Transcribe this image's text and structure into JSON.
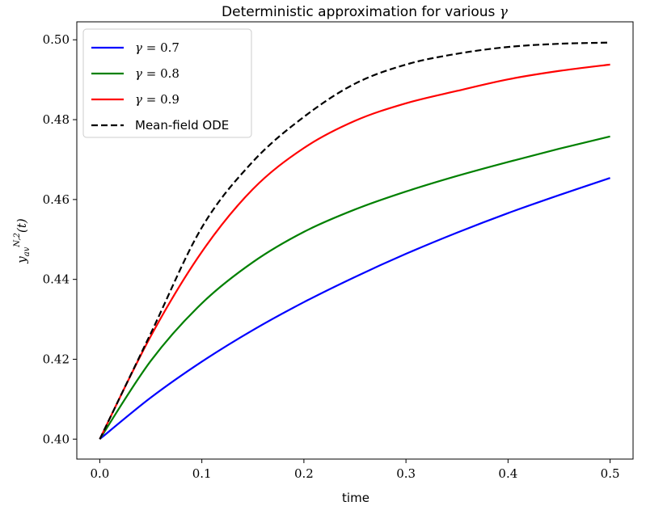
{
  "chart_data": {
    "type": "line",
    "title": "Deterministic approximation for various γ",
    "xlabel": "time",
    "ylabel": "y_av^{N,2}(t)",
    "xlim": [
      -0.0225,
      0.5225
    ],
    "ylim": [
      0.395,
      0.5045
    ],
    "xticks": [
      0.0,
      0.1,
      0.2,
      0.3,
      0.4,
      0.5
    ],
    "xtick_labels": [
      "0.0",
      "0.1",
      "0.2",
      "0.3",
      "0.4",
      "0.5"
    ],
    "yticks": [
      0.4,
      0.42,
      0.44,
      0.46,
      0.48,
      0.5
    ],
    "ytick_labels": [
      "0.40",
      "0.42",
      "0.44",
      "0.46",
      "0.48",
      "0.50"
    ],
    "grid": false,
    "legend_position": "top-left",
    "x": [
      0.0,
      0.05,
      0.1,
      0.15,
      0.2,
      0.25,
      0.3,
      0.35,
      0.4,
      0.45,
      0.5
    ],
    "series": [
      {
        "name": "γ = 0.7",
        "color": "#0000ff",
        "style": "solid",
        "values": [
          0.4,
          0.4104,
          0.4194,
          0.4273,
          0.4343,
          0.4406,
          0.4464,
          0.4517,
          0.4566,
          0.4611,
          0.4654
        ]
      },
      {
        "name": "γ = 0.8",
        "color": "#008000",
        "style": "solid",
        "values": [
          0.4,
          0.4196,
          0.434,
          0.4443,
          0.4519,
          0.4575,
          0.462,
          0.4659,
          0.4694,
          0.4727,
          0.4758
        ]
      },
      {
        "name": "γ = 0.9",
        "color": "#ff0000",
        "style": "solid",
        "values": [
          0.4,
          0.4258,
          0.4469,
          0.4626,
          0.4729,
          0.4797,
          0.4841,
          0.4872,
          0.4901,
          0.4922,
          0.4938
        ]
      },
      {
        "name": "Mean-field ODE",
        "color": "#000000",
        "style": "dashed",
        "values": [
          0.4,
          0.4265,
          0.453,
          0.4695,
          0.4807,
          0.489,
          0.4938,
          0.4965,
          0.4982,
          0.499,
          0.4993
        ]
      }
    ]
  }
}
